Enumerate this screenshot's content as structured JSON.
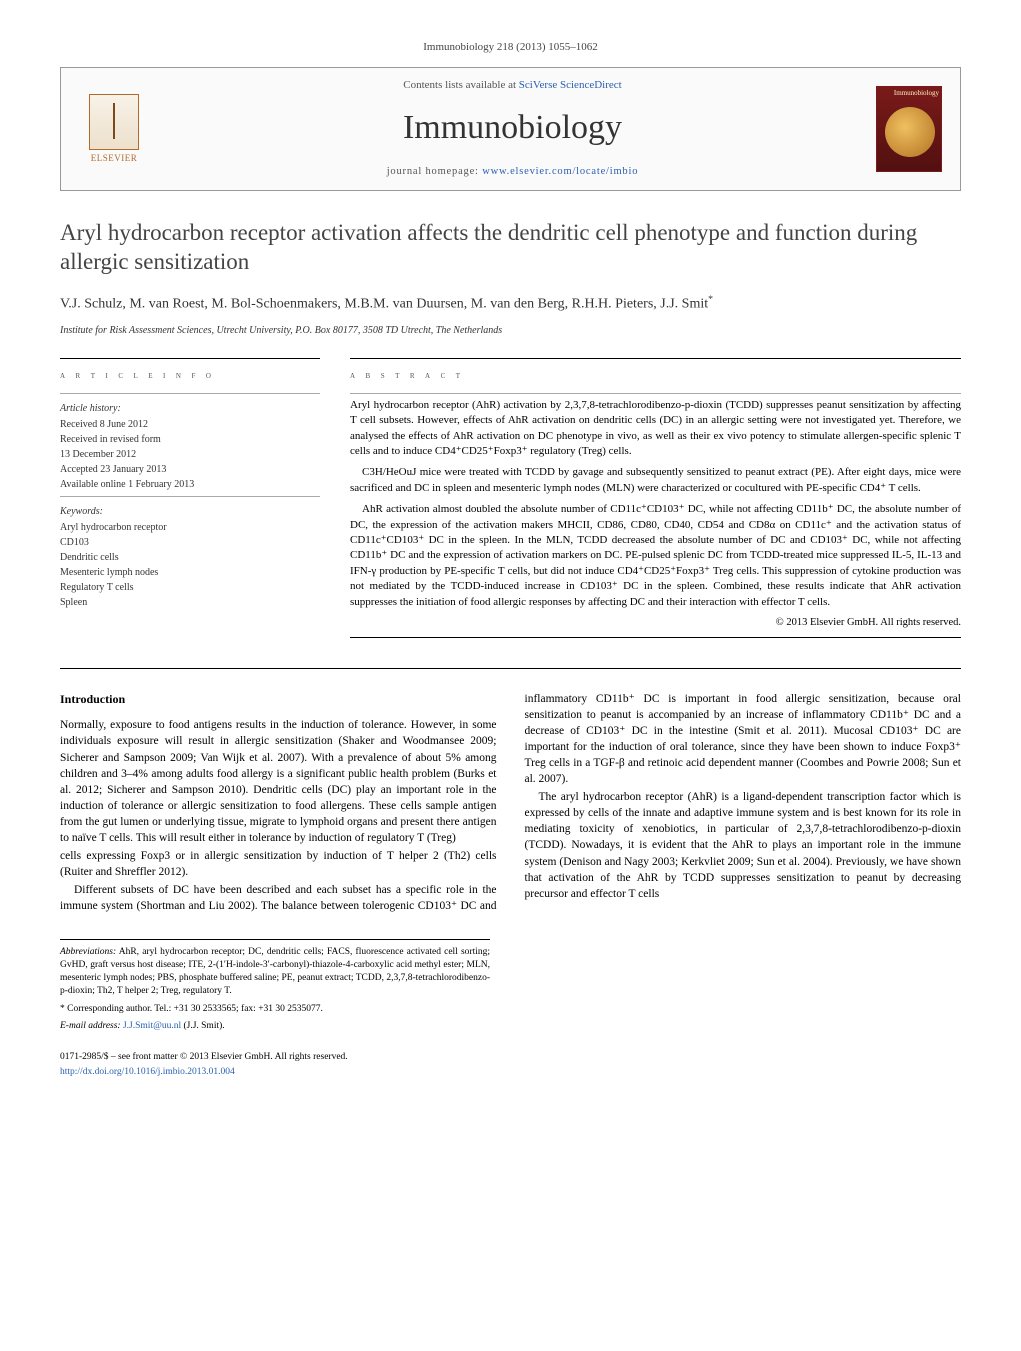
{
  "journal_ref": "Immunobiology 218 (2013) 1055–1062",
  "header": {
    "publisher": "ELSEVIER",
    "sd_prefix": "Contents lists available at ",
    "sd_link": "SciVerse ScienceDirect",
    "journal_title": "Immunobiology",
    "homepage_prefix": "journal homepage: ",
    "homepage_link": "www.elsevier.com/locate/imbio",
    "cover_label": "Immunobiology"
  },
  "title": "Aryl hydrocarbon receptor activation affects the dendritic cell phenotype and function during allergic sensitization",
  "authors": "V.J. Schulz, M. van Roest, M. Bol-Schoenmakers, M.B.M. van Duursen, M. van den Berg, R.H.H. Pieters, J.J. Smit",
  "corresponding_marker": "*",
  "affiliation": "Institute for Risk Assessment Sciences, Utrecht University, P.O. Box 80177, 3508 TD Utrecht, The Netherlands",
  "info": {
    "label": "a r t i c l e   i n f o",
    "history_heading": "Article history:",
    "history": [
      "Received 8 June 2012",
      "Received in revised form",
      "13 December 2012",
      "Accepted 23 January 2013",
      "Available online 1 February 2013"
    ],
    "keywords_heading": "Keywords:",
    "keywords": [
      "Aryl hydrocarbon receptor",
      "CD103",
      "Dendritic cells",
      "Mesenteric lymph nodes",
      "Regulatory T cells",
      "Spleen"
    ]
  },
  "abstract": {
    "label": "a b s t r a c t",
    "paragraphs": [
      "Aryl hydrocarbon receptor (AhR) activation by 2,3,7,8-tetrachlorodibenzo-p-dioxin (TCDD) suppresses peanut sensitization by affecting T cell subsets. However, effects of AhR activation on dendritic cells (DC) in an allergic setting were not investigated yet. Therefore, we analysed the effects of AhR activation on DC phenotype in vivo, as well as their ex vivo potency to stimulate allergen-specific splenic T cells and to induce CD4⁺CD25⁺Foxp3⁺ regulatory (Treg) cells.",
      "C3H/HeOuJ mice were treated with TCDD by gavage and subsequently sensitized to peanut extract (PE). After eight days, mice were sacrificed and DC in spleen and mesenteric lymph nodes (MLN) were characterized or cocultured with PE-specific CD4⁺ T cells.",
      "AhR activation almost doubled the absolute number of CD11c⁺CD103⁺ DC, while not affecting CD11b⁺ DC, the absolute number of DC, the expression of the activation makers MHCII, CD86, CD80, CD40, CD54 and CD8α on CD11c⁺ and the activation status of CD11c⁺CD103⁺ DC in the spleen. In the MLN, TCDD decreased the absolute number of DC and CD103⁺ DC, while not affecting CD11b⁺ DC and the expression of activation markers on DC. PE-pulsed splenic DC from TCDD-treated mice suppressed IL-5, IL-13 and IFN-γ production by PE-specific T cells, but did not induce CD4⁺CD25⁺Foxp3⁺ Treg cells. This suppression of cytokine production was not mediated by the TCDD-induced increase in CD103⁺ DC in the spleen. Combined, these results indicate that AhR activation suppresses the initiation of food allergic responses by affecting DC and their interaction with effector T cells."
    ],
    "copyright": "© 2013 Elsevier GmbH. All rights reserved."
  },
  "body": {
    "heading": "Introduction",
    "paragraphs": [
      "Normally, exposure to food antigens results in the induction of tolerance. However, in some individuals exposure will result in allergic sensitization (Shaker and Woodmansee 2009; Sicherer and Sampson 2009; Van Wijk et al. 2007). With a prevalence of about 5% among children and 3–4% among adults food allergy is a significant public health problem (Burks et al. 2012; Sicherer and Sampson 2010). Dendritic cells (DC) play an important role in the induction of tolerance or allergic sensitization to food allergens. These cells sample antigen from the gut lumen or underlying tissue, migrate to lymphoid organs and present there antigen to naïve T cells. This will result either in tolerance by induction of regulatory T (Treg)",
      "cells expressing Foxp3 or in allergic sensitization by induction of T helper 2 (Th2) cells (Ruiter and Shreffler 2012).",
      "Different subsets of DC have been described and each subset has a specific role in the immune system (Shortman and Liu 2002). The balance between tolerogenic CD103⁺ DC and inflammatory CD11b⁺ DC is important in food allergic sensitization, because oral sensitization to peanut is accompanied by an increase of inflammatory CD11b⁺ DC and a decrease of CD103⁺ DC in the intestine (Smit et al. 2011). Mucosal CD103⁺ DC are important for the induction of oral tolerance, since they have been shown to induce Foxp3⁺ Treg cells in a TGF-β and retinoic acid dependent manner (Coombes and Powrie 2008; Sun et al. 2007).",
      "The aryl hydrocarbon receptor (AhR) is a ligand-dependent transcription factor which is expressed by cells of the innate and adaptive immune system and is best known for its role in mediating toxicity of xenobiotics, in particular of 2,3,7,8-tetrachlorodibenzo-p-dioxin (TCDD). Nowadays, it is evident that the AhR to plays an important role in the immune system (Denison and Nagy 2003; Kerkvliet 2009; Sun et al. 2004). Previously, we have shown that activation of the AhR by TCDD suppresses sensitization to peanut by decreasing precursor and effector T cells"
    ]
  },
  "footnotes": {
    "abbrev_label": "Abbreviations:",
    "abbrev_text": " AhR, aryl hydrocarbon receptor; DC, dendritic cells; FACS, fluorescence activated cell sorting; GvHD, graft versus host disease; ITE, 2-(1′H-indole-3′-carbonyl)-thiazole-4-carboxylic acid methyl ester; MLN, mesenteric lymph nodes; PBS, phosphate buffered saline; PE, peanut extract; TCDD, 2,3,7,8-tetrachlorodibenzo-p-dioxin; Th2, T helper 2; Treg, regulatory T.",
    "corr_label": "* Corresponding author. ",
    "corr_text": "Tel.: +31 30 2533565; fax: +31 30 2535077.",
    "email_label": "E-mail address: ",
    "email": "J.J.Smit@uu.nl",
    "email_suffix": " (J.J. Smit)."
  },
  "bottom": {
    "line1": "0171-2985/$ – see front matter © 2013 Elsevier GmbH. All rights reserved.",
    "doi": "http://dx.doi.org/10.1016/j.imbio.2013.01.004"
  },
  "colors": {
    "link": "#2a60b0",
    "text": "#000000",
    "rule": "#000000",
    "publisher": "#b06a2a",
    "cover_bg": "#7a1a1a"
  }
}
